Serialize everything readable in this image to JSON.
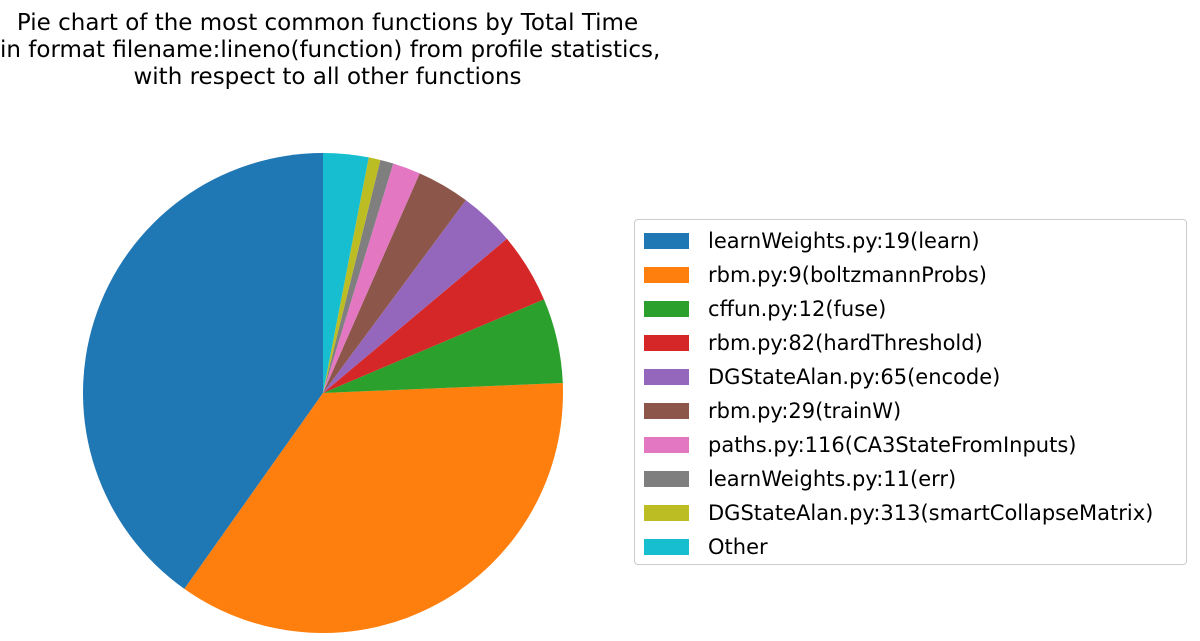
{
  "title": {
    "lines": [
      "Pie chart of the most common functions by Total Time",
      "in format filename:lineno(function) from profile statistics,",
      "with respect to all other functions"
    ]
  },
  "chart_data": {
    "type": "pie",
    "title": "Pie chart of the most common functions by Total Time in format filename:lineno(function) from profile statistics, with respect to all other functions",
    "start_angle_deg": 90,
    "direction": "counterclockwise",
    "legend_position": "right",
    "slices": [
      {
        "label": "learnWeights.py:19(learn)",
        "value": 40.8,
        "color": "#1f77b4"
      },
      {
        "label": "rbm.py:9(boltzmannProbs)",
        "value": 36.0,
        "color": "#ff7f0e"
      },
      {
        "label": "cffun.py:12(fuse)",
        "value": 5.8,
        "color": "#2ca02c"
      },
      {
        "label": "rbm.py:82(hardThreshold)",
        "value": 4.8,
        "color": "#d62728"
      },
      {
        "label": "DGStateAlan.py:65(encode)",
        "value": 3.8,
        "color": "#9467bd"
      },
      {
        "label": "rbm.py:29(trainW)",
        "value": 3.6,
        "color": "#8c564b"
      },
      {
        "label": "paths.py:116(CA3StateFromInputs)",
        "value": 1.9,
        "color": "#e377c2"
      },
      {
        "label": "learnWeights.py:11(err)",
        "value": 0.9,
        "color": "#7f7f7f"
      },
      {
        "label": "DGStateAlan.py:313(smartCollapseMatrix)",
        "value": 0.8,
        "color": "#bcbd22"
      },
      {
        "label": "Other",
        "value": 3.1,
        "color": "#17becf"
      }
    ]
  }
}
